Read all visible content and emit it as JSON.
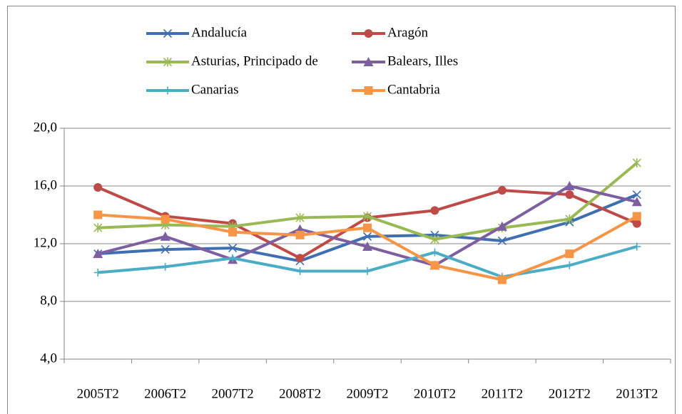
{
  "chart_data": {
    "type": "line",
    "categories": [
      "2005T2",
      "2006T2",
      "2007T2",
      "2008T2",
      "2009T2",
      "2010T2",
      "2011T2",
      "2012T2",
      "2013T2"
    ],
    "series": [
      {
        "name": "Andalucía",
        "color": "#3f6fb0",
        "marker": "x",
        "values": [
          11.3,
          11.6,
          11.7,
          10.8,
          12.5,
          12.6,
          12.2,
          13.5,
          15.4
        ]
      },
      {
        "name": "Aragón",
        "color": "#be4b48",
        "marker": "circle",
        "values": [
          15.9,
          13.9,
          13.4,
          11.0,
          13.8,
          14.3,
          15.7,
          15.4,
          13.4
        ]
      },
      {
        "name": "Asturias, Principado de",
        "color": "#98b954",
        "marker": "star",
        "values": [
          13.1,
          13.3,
          13.2,
          13.8,
          13.9,
          12.3,
          13.1,
          13.7,
          17.6
        ]
      },
      {
        "name": "Balears, Illes",
        "color": "#7d5fa0",
        "marker": "triangle",
        "values": [
          11.3,
          12.5,
          10.9,
          13.0,
          11.8,
          10.5,
          13.2,
          16.0,
          14.9
        ]
      },
      {
        "name": "Canarias",
        "color": "#4aacc5",
        "marker": "plus",
        "values": [
          10.0,
          10.4,
          11.0,
          10.1,
          10.1,
          11.4,
          9.7,
          10.5,
          11.8
        ]
      },
      {
        "name": "Cantabria",
        "color": "#f59545",
        "marker": "square",
        "values": [
          14.0,
          13.7,
          12.8,
          12.6,
          13.1,
          10.5,
          9.5,
          11.3,
          13.9
        ]
      }
    ],
    "ylim": [
      4,
      20
    ],
    "yticks": [
      {
        "value": 4,
        "label": "4,0"
      },
      {
        "value": 8,
        "label": "8,0"
      },
      {
        "value": 12,
        "label": "12,0"
      },
      {
        "value": 16,
        "label": "16,0"
      },
      {
        "value": 20,
        "label": "20,0"
      }
    ],
    "grid": true
  }
}
